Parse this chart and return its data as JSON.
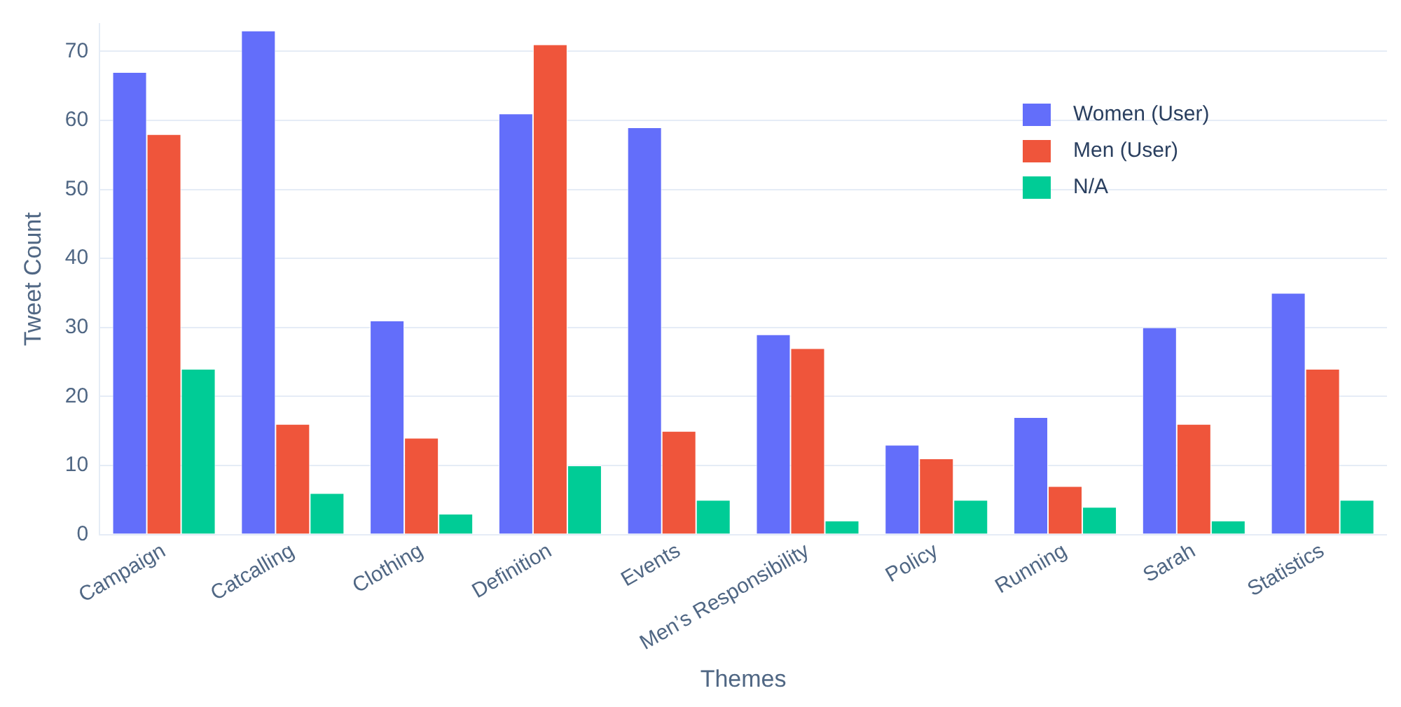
{
  "chart_data": {
    "type": "bar",
    "xlabel": "Themes",
    "ylabel": "Tweet Count",
    "categories": [
      "Campaign",
      "Catcalling",
      "Clothing",
      "Definition",
      "Events",
      "Men’s Responsibility",
      "Policy",
      "Running",
      "Sarah",
      "Statistics"
    ],
    "series": [
      {
        "name": "Women (User)",
        "color": "#636efa",
        "values": [
          67,
          73,
          31,
          61,
          59,
          29,
          13,
          17,
          30,
          35
        ]
      },
      {
        "name": "Men (User)",
        "color": "#ef553b",
        "values": [
          58,
          16,
          14,
          71,
          15,
          27,
          11,
          7,
          16,
          24
        ]
      },
      {
        "name": "N/A",
        "color": "#00cc96",
        "values": [
          24,
          6,
          3,
          10,
          5,
          2,
          5,
          4,
          2,
          5
        ]
      }
    ],
    "ylim": [
      0,
      74
    ],
    "yticks": [
      0,
      10,
      20,
      30,
      40,
      50,
      60,
      70
    ],
    "grid": "y",
    "legend": "top right"
  }
}
